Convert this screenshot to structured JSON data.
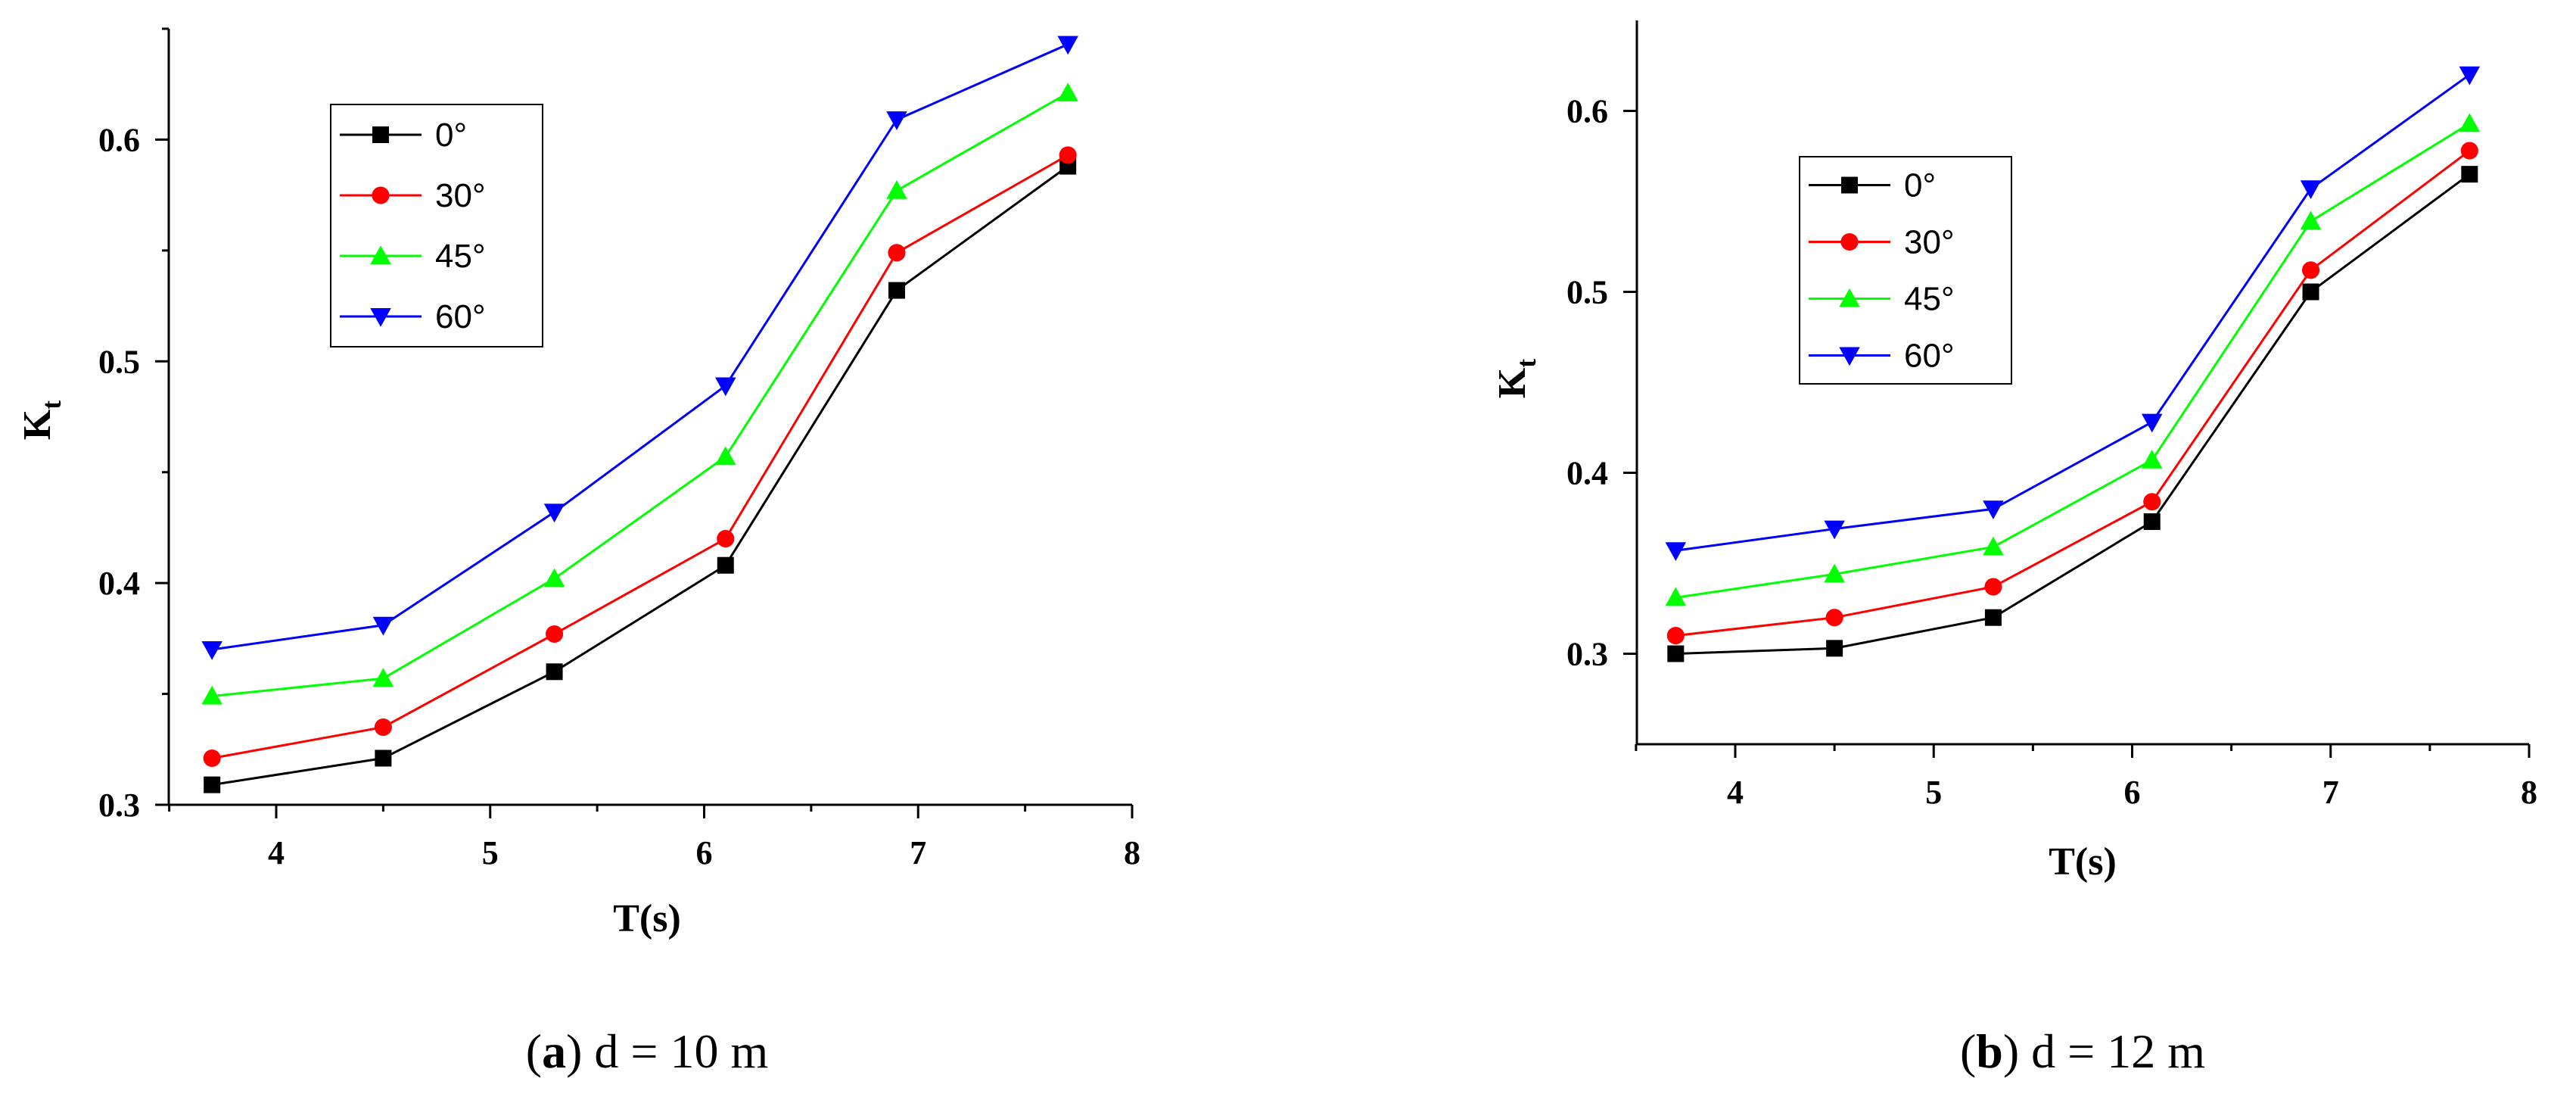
{
  "chart_data": [
    {
      "type": "line",
      "id": "a",
      "caption_letter": "a",
      "caption_text": ") d = 10 m",
      "caption_open": "(",
      "xlabel": "T(s)",
      "ylabel_main": "K",
      "ylabel_sub": "t",
      "xlim": [
        3.5,
        8
      ],
      "ylim": [
        0.3,
        0.65
      ],
      "xticks": [
        "4",
        "5",
        "6",
        "7",
        "8"
      ],
      "yticks": [
        "0.3",
        "0.4",
        "0.5",
        "0.6"
      ],
      "x": [
        3.7,
        4.5,
        5.3,
        6.1,
        6.9,
        7.7
      ],
      "series": [
        {
          "name": "0°",
          "color": "#000000",
          "marker": "square",
          "values": [
            0.309,
            0.321,
            0.36,
            0.408,
            0.532,
            0.588
          ]
        },
        {
          "name": "30°",
          "color": "#ff0000",
          "marker": "circle",
          "values": [
            0.321,
            0.335,
            0.377,
            0.42,
            0.549,
            0.593
          ]
        },
        {
          "name": "45°",
          "color": "#00ff00",
          "marker": "triangle-up",
          "values": [
            0.349,
            0.357,
            0.402,
            0.457,
            0.577,
            0.621
          ]
        },
        {
          "name": "60°",
          "color": "#0000ff",
          "marker": "triangle-down",
          "values": [
            0.37,
            0.381,
            0.432,
            0.489,
            0.609,
            0.643
          ]
        }
      ]
    },
    {
      "type": "line",
      "id": "b",
      "caption_letter": "b",
      "caption_text": ") d = 12 m",
      "caption_open": "(",
      "xlabel": "T(s)",
      "ylabel_main": "K",
      "ylabel_sub": "t",
      "xlim": [
        3.5,
        8
      ],
      "ylim": [
        0.25,
        0.65
      ],
      "xticks": [
        "4",
        "5",
        "6",
        "7",
        "8"
      ],
      "yticks": [
        "0.3",
        "0.4",
        "0.5",
        "0.6"
      ],
      "x": [
        3.7,
        4.5,
        5.3,
        6.1,
        6.9,
        7.7
      ],
      "series": [
        {
          "name": "0°",
          "color": "#000000",
          "marker": "square",
          "values": [
            0.3,
            0.303,
            0.32,
            0.373,
            0.5,
            0.565
          ]
        },
        {
          "name": "30°",
          "color": "#ff0000",
          "marker": "circle",
          "values": [
            0.31,
            0.32,
            0.337,
            0.384,
            0.512,
            0.578
          ]
        },
        {
          "name": "45°",
          "color": "#00ff00",
          "marker": "triangle-up",
          "values": [
            0.331,
            0.344,
            0.359,
            0.407,
            0.539,
            0.593
          ]
        },
        {
          "name": "60°",
          "color": "#0000ff",
          "marker": "triangle-down",
          "values": [
            0.357,
            0.369,
            0.38,
            0.428,
            0.557,
            0.62
          ]
        }
      ]
    }
  ]
}
